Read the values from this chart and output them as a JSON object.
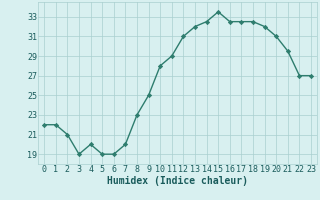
{
  "x": [
    0,
    1,
    2,
    3,
    4,
    5,
    6,
    7,
    8,
    9,
    10,
    11,
    12,
    13,
    14,
    15,
    16,
    17,
    18,
    19,
    20,
    21,
    22,
    23
  ],
  "y": [
    22,
    22,
    21,
    19,
    20,
    19,
    19,
    20,
    23,
    25,
    28,
    29,
    31,
    32,
    32.5,
    33.5,
    32.5,
    32.5,
    32.5,
    32,
    31,
    29.5,
    27,
    27
  ],
  "line_color": "#2e7d6e",
  "marker_color": "#2e7d6e",
  "bg_color": "#d8f0f0",
  "grid_color": "#aacfcf",
  "xlabel": "Humidex (Indice chaleur)",
  "xlim": [
    -0.5,
    23.5
  ],
  "ylim": [
    18,
    34.5
  ],
  "yticks": [
    19,
    21,
    23,
    25,
    27,
    29,
    31,
    33
  ],
  "xtick_labels": [
    "0",
    "1",
    "2",
    "3",
    "4",
    "5",
    "6",
    "7",
    "8",
    "9",
    "10",
    "11",
    "12",
    "13",
    "14",
    "15",
    "16",
    "17",
    "18",
    "19",
    "20",
    "21",
    "22",
    "23"
  ],
  "xlabel_fontsize": 7,
  "tick_fontsize": 6,
  "label_color": "#1a5c5c"
}
